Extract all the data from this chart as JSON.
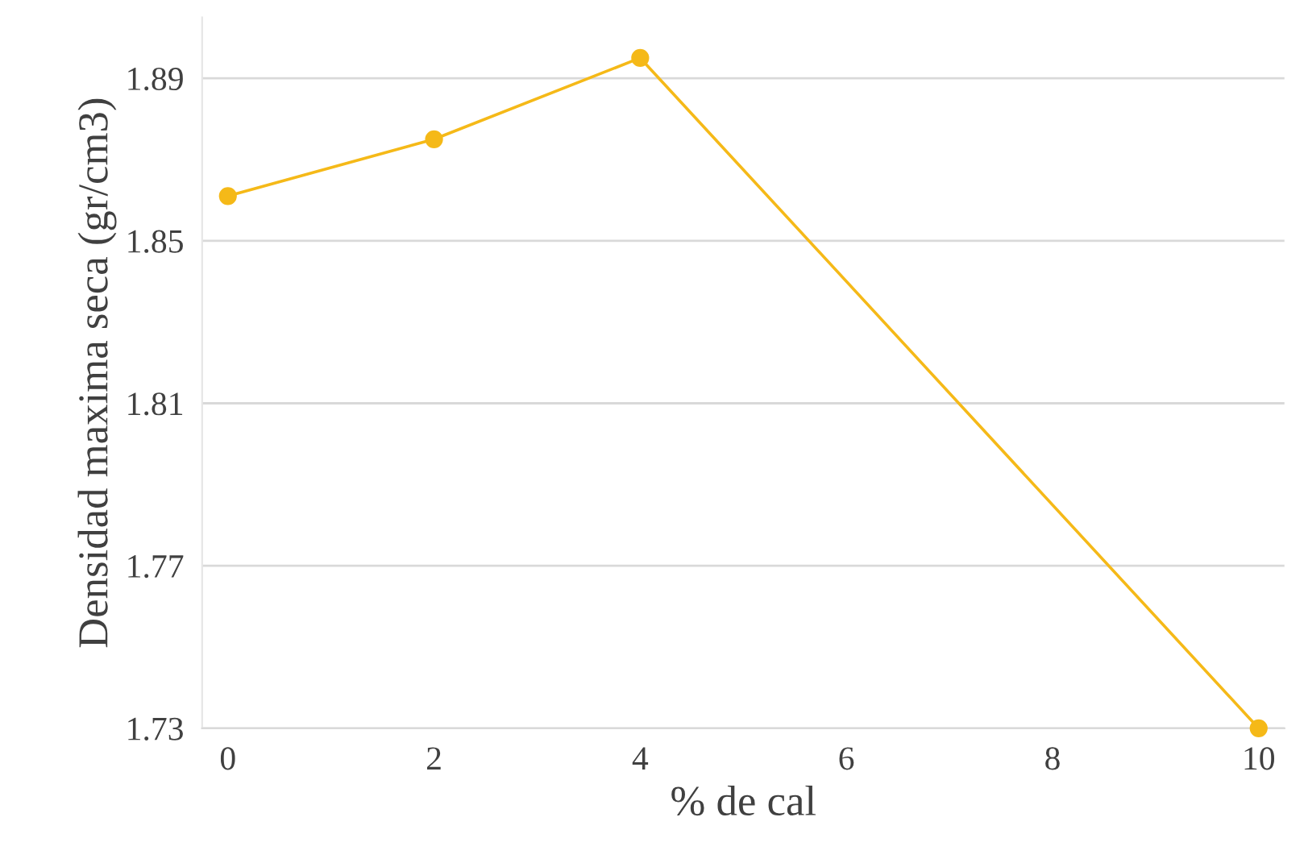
{
  "chart_data": {
    "type": "line",
    "xlabel": "% de cal",
    "ylabel": "Densidad maxima seca (gr/cm3)",
    "x": [
      0,
      2,
      4,
      10
    ],
    "series": [
      {
        "color": "#f5b918",
        "values": [
          1.861,
          1.875,
          1.895,
          1.73
        ]
      }
    ],
    "xlim": [
      -0.25,
      10.25
    ],
    "xticks": [
      0,
      2,
      4,
      6,
      8,
      10
    ],
    "ylim": [
      1.73,
      1.905
    ],
    "yticks": [
      1.73,
      1.77,
      1.81,
      1.85,
      1.89
    ],
    "grid": "y",
    "marker": "circle",
    "line_style": "solid",
    "legend": false
  }
}
